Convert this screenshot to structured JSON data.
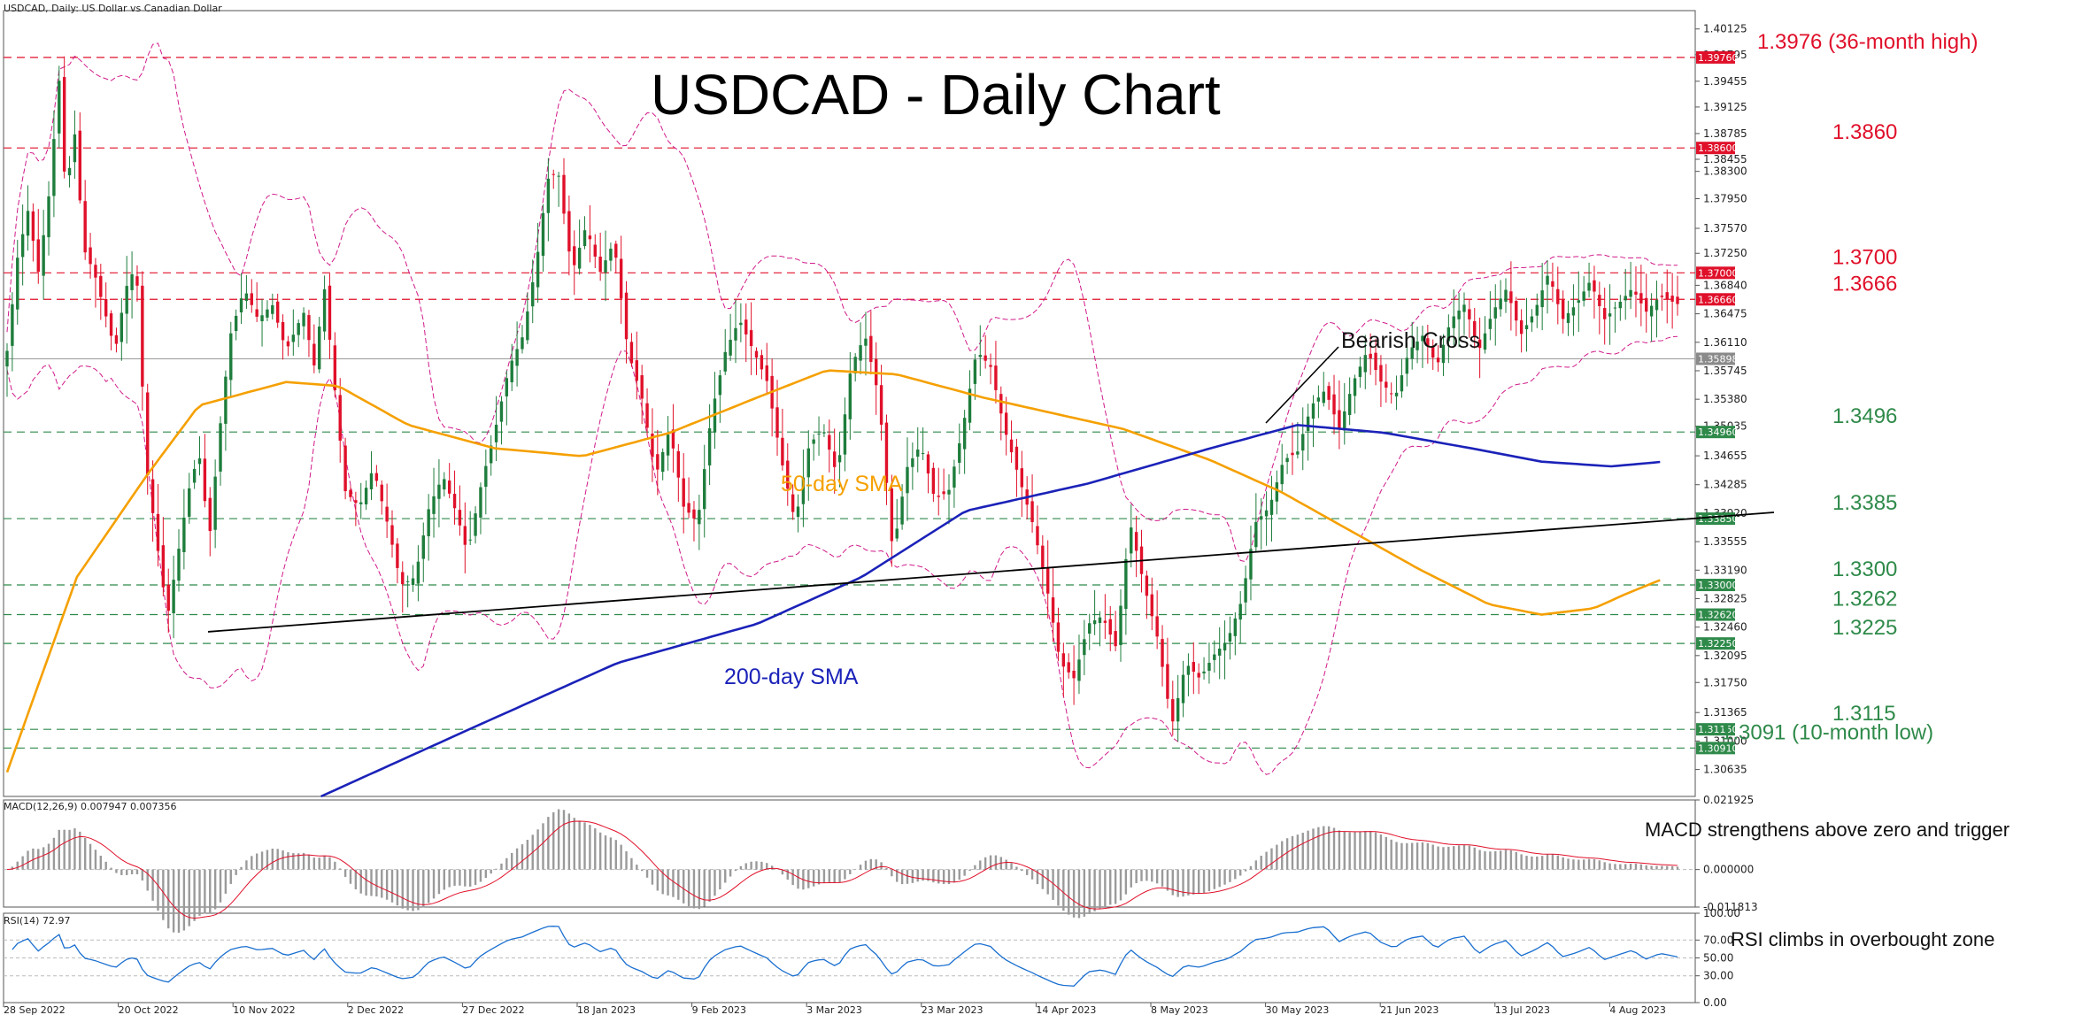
{
  "header": {
    "symbol_line": "USDCAD, Daily:  US Dollar vs Canadian Dollar",
    "title": "USDCAD - Daily Chart"
  },
  "colors": {
    "bull": "#1e7d3c",
    "bear": "#e0102a",
    "sma50": "#f5a000",
    "sma200": "#1b22b8",
    "bollinger": "#d01a8a",
    "resistance": "#e0102a",
    "support": "#2f8a4a",
    "trendline": "#000000",
    "macd_hist": "#9a9a9a",
    "macd_signal": "#e0102a",
    "rsi": "#1a6fd0",
    "current_price_tag": "#8a8a8a"
  },
  "labels": {
    "bearish_cross": "Bearish Cross",
    "sma50": "50-day SMA",
    "sma200": "200-day SMA",
    "macd_note": "MACD strengthens above zero and trigger",
    "rsi_note": "RSI climbs in overbought zone",
    "macd_header": "MACD(12,26,9) 0.007947 0.007356",
    "rsi_header": "RSI(14) 72.97"
  },
  "chart_data": [
    {
      "type": "candlestick",
      "title": "USDCAD - Daily Chart",
      "ylim": [
        1.3029,
        1.4036
      ],
      "price_axis_ticks": [
        "1.40125",
        "1.39795",
        "1.39455",
        "1.39125",
        "1.38785",
        "1.38455",
        "1.38300",
        "1.37950",
        "1.37570",
        "1.37250",
        "1.36840",
        "1.36475",
        "1.36110",
        "1.35745",
        "1.35380",
        "1.35035",
        "1.34655",
        "1.34285",
        "1.33920",
        "1.33555",
        "1.33190",
        "1.32825",
        "1.32460",
        "1.32095",
        "1.31750",
        "1.31365",
        "1.31000",
        "1.30635"
      ],
      "date_axis": [
        "28 Sep 2022",
        "20 Oct 2022",
        "10 Nov 2022",
        "2 Dec 2022",
        "27 Dec 2022",
        "18 Jan 2023",
        "9 Feb 2023",
        "3 Mar 2023",
        "23 Mar 2023",
        "14 Apr 2023",
        "8 May 2023",
        "30 May 2023",
        "21 Jun 2023",
        "13 Jul 2023",
        "4 Aug 2023"
      ],
      "current_price": 1.35898,
      "horizontal_levels": [
        {
          "value": 1.3976,
          "label": "1.3976 (36-month high)",
          "tag": "1.39760",
          "kind": "resistance"
        },
        {
          "value": 1.386,
          "label": "1.3860",
          "tag": "1.38600",
          "kind": "resistance"
        },
        {
          "value": 1.37,
          "label": "1.3700",
          "tag": "1.37000",
          "kind": "resistance"
        },
        {
          "value": 1.3666,
          "label": "1.3666",
          "tag": "1.36660",
          "kind": "resistance"
        },
        {
          "value": 1.3496,
          "label": "1.3496",
          "tag": "1.34960",
          "kind": "support"
        },
        {
          "value": 1.3385,
          "label": "1.3385",
          "tag": "1.33850",
          "kind": "support"
        },
        {
          "value": 1.33,
          "label": "1.3300",
          "tag": "1.33000",
          "kind": "support"
        },
        {
          "value": 1.3262,
          "label": "1.3262",
          "tag": "1.32620",
          "kind": "support"
        },
        {
          "value": 1.3225,
          "label": "1.3225",
          "tag": "1.32250",
          "kind": "support"
        },
        {
          "value": 1.3115,
          "label": "1.3115",
          "tag": "1.31150",
          "kind": "support"
        },
        {
          "value": 1.3091,
          "label": "1.3091 (10-month low)",
          "tag": "1.30910",
          "kind": "support"
        }
      ],
      "series": [
        {
          "name": "50-day SMA",
          "anchors": [
            [
              0,
              1.306
            ],
            [
              20,
              1.331
            ],
            [
              40,
              1.344
            ],
            [
              55,
              1.353
            ],
            [
              80,
              1.356
            ],
            [
              95,
              1.3555
            ],
            [
              115,
              1.3505
            ],
            [
              140,
              1.3475
            ],
            [
              165,
              1.3465
            ],
            [
              190,
              1.3495
            ],
            [
              215,
              1.354
            ],
            [
              235,
              1.3575
            ],
            [
              255,
              1.357
            ],
            [
              280,
              1.354
            ],
            [
              300,
              1.352
            ],
            [
              320,
              1.35
            ],
            [
              345,
              1.346
            ],
            [
              365,
              1.342
            ],
            [
              385,
              1.337
            ],
            [
              405,
              1.332
            ],
            [
              425,
              1.3275
            ],
            [
              440,
              1.3262
            ],
            [
              455,
              1.327
            ],
            [
              465,
              1.329
            ],
            [
              475,
              1.3308
            ]
          ]
        },
        {
          "name": "200-day SMA",
          "anchors": [
            [
              90,
              1.3029
            ],
            [
              135,
              1.312
            ],
            [
              175,
              1.32
            ],
            [
              215,
              1.325
            ],
            [
              245,
              1.331
            ],
            [
              275,
              1.3395
            ],
            [
              310,
              1.343
            ],
            [
              345,
              1.3475
            ],
            [
              370,
              1.3505
            ],
            [
              395,
              1.3495
            ],
            [
              420,
              1.3475
            ],
            [
              440,
              1.3458
            ],
            [
              460,
              1.3452
            ],
            [
              475,
              1.3458
            ]
          ]
        }
      ],
      "trendline": [
        [
          58,
          1.324
        ],
        [
          500,
          1.3393
        ]
      ]
    },
    {
      "type": "histogram",
      "title": "MACD(12,26,9)",
      "ylim": [
        -0.011813,
        0.021925
      ],
      "axis_ticks": [
        "0.021925",
        "0.000000",
        "-0.011813"
      ],
      "macd": 0.007947,
      "signal": 0.007356
    },
    {
      "type": "line",
      "title": "RSI(14)",
      "ylim": [
        0,
        100
      ],
      "axis_ticks": [
        "100.00",
        "70.00",
        "50.00",
        "30.00",
        "0.00"
      ],
      "last_value": 72.97
    }
  ]
}
